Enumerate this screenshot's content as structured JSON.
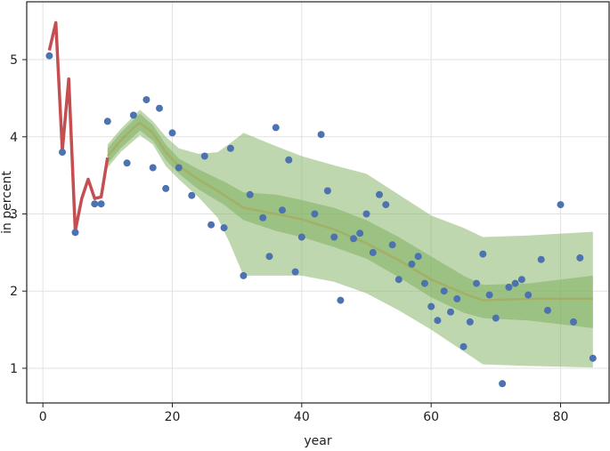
{
  "chart_data": {
    "type": "scatter",
    "xlabel": "year",
    "ylabel": "in percent",
    "xlim": [
      -2.5,
      87.5
    ],
    "ylim": [
      0.55,
      5.75
    ],
    "x_ticks": [
      0,
      20,
      40,
      60,
      80
    ],
    "y_ticks": [
      1,
      2,
      3,
      4,
      5
    ],
    "grid": true,
    "colors": {
      "points": "#4c72b0",
      "spot_line": "#c44e52",
      "band": "#7fb05f",
      "median_line": "#a9a354",
      "grid": "#e2e2e2",
      "axes": "#222222"
    },
    "points": [
      {
        "x": 1,
        "y": 5.05
      },
      {
        "x": 3,
        "y": 3.8
      },
      {
        "x": 5,
        "y": 2.76
      },
      {
        "x": 8,
        "y": 3.13
      },
      {
        "x": 9,
        "y": 3.13
      },
      {
        "x": 10,
        "y": 4.2
      },
      {
        "x": 13,
        "y": 3.66
      },
      {
        "x": 14,
        "y": 4.28
      },
      {
        "x": 16,
        "y": 4.48
      },
      {
        "x": 17,
        "y": 3.6
      },
      {
        "x": 18,
        "y": 4.37
      },
      {
        "x": 19,
        "y": 3.33
      },
      {
        "x": 20,
        "y": 4.05
      },
      {
        "x": 21,
        "y": 3.6
      },
      {
        "x": 23,
        "y": 3.24
      },
      {
        "x": 25,
        "y": 3.75
      },
      {
        "x": 26,
        "y": 2.86
      },
      {
        "x": 28,
        "y": 2.82
      },
      {
        "x": 29,
        "y": 3.85
      },
      {
        "x": 31,
        "y": 2.2
      },
      {
        "x": 32,
        "y": 3.25
      },
      {
        "x": 34,
        "y": 2.95
      },
      {
        "x": 35,
        "y": 2.45
      },
      {
        "x": 36,
        "y": 4.12
      },
      {
        "x": 37,
        "y": 3.05
      },
      {
        "x": 38,
        "y": 3.7
      },
      {
        "x": 39,
        "y": 2.25
      },
      {
        "x": 40,
        "y": 2.7
      },
      {
        "x": 42,
        "y": 3.0
      },
      {
        "x": 43,
        "y": 4.03
      },
      {
        "x": 44,
        "y": 3.3
      },
      {
        "x": 45,
        "y": 2.7
      },
      {
        "x": 46,
        "y": 1.88
      },
      {
        "x": 48,
        "y": 2.68
      },
      {
        "x": 49,
        "y": 2.75
      },
      {
        "x": 50,
        "y": 3.0
      },
      {
        "x": 51,
        "y": 2.5
      },
      {
        "x": 52,
        "y": 3.25
      },
      {
        "x": 53,
        "y": 3.12
      },
      {
        "x": 54,
        "y": 2.6
      },
      {
        "x": 55,
        "y": 2.15
      },
      {
        "x": 57,
        "y": 2.35
      },
      {
        "x": 58,
        "y": 2.45
      },
      {
        "x": 59,
        "y": 2.1
      },
      {
        "x": 60,
        "y": 1.8
      },
      {
        "x": 61,
        "y": 1.62
      },
      {
        "x": 62,
        "y": 2.0
      },
      {
        "x": 63,
        "y": 1.73
      },
      {
        "x": 64,
        "y": 1.9
      },
      {
        "x": 65,
        "y": 1.28
      },
      {
        "x": 66,
        "y": 1.6
      },
      {
        "x": 67,
        "y": 2.1
      },
      {
        "x": 68,
        "y": 2.48
      },
      {
        "x": 69,
        "y": 1.95
      },
      {
        "x": 70,
        "y": 1.65
      },
      {
        "x": 71,
        "y": 0.8
      },
      {
        "x": 72,
        "y": 2.05
      },
      {
        "x": 73,
        "y": 2.1
      },
      {
        "x": 74,
        "y": 2.15
      },
      {
        "x": 75,
        "y": 1.95
      },
      {
        "x": 77,
        "y": 2.41
      },
      {
        "x": 78,
        "y": 1.75
      },
      {
        "x": 80,
        "y": 3.12
      },
      {
        "x": 82,
        "y": 1.6
      },
      {
        "x": 83,
        "y": 2.43
      },
      {
        "x": 85,
        "y": 1.13
      }
    ],
    "spot_line": [
      {
        "x": 1,
        "y": 5.12
      },
      {
        "x": 2,
        "y": 5.48
      },
      {
        "x": 3,
        "y": 3.82
      },
      {
        "x": 4,
        "y": 4.75
      },
      {
        "x": 5,
        "y": 2.78
      },
      {
        "x": 6,
        "y": 3.2
      },
      {
        "x": 7,
        "y": 3.45
      },
      {
        "x": 8,
        "y": 3.2
      },
      {
        "x": 9,
        "y": 3.22
      },
      {
        "x": 10,
        "y": 3.73
      }
    ],
    "median_line": [
      {
        "x": 10,
        "y": 3.75
      },
      {
        "x": 12,
        "y": 3.95
      },
      {
        "x": 14,
        "y": 4.12
      },
      {
        "x": 15,
        "y": 4.18
      },
      {
        "x": 17,
        "y": 4.05
      },
      {
        "x": 19,
        "y": 3.8
      },
      {
        "x": 21,
        "y": 3.62
      },
      {
        "x": 24,
        "y": 3.45
      },
      {
        "x": 27,
        "y": 3.3
      },
      {
        "x": 31,
        "y": 3.08
      },
      {
        "x": 36,
        "y": 3.0
      },
      {
        "x": 40,
        "y": 2.93
      },
      {
        "x": 45,
        "y": 2.8
      },
      {
        "x": 50,
        "y": 2.62
      },
      {
        "x": 55,
        "y": 2.4
      },
      {
        "x": 60,
        "y": 2.15
      },
      {
        "x": 65,
        "y": 1.97
      },
      {
        "x": 68,
        "y": 1.88
      },
      {
        "x": 75,
        "y": 1.9
      },
      {
        "x": 85,
        "y": 1.9
      }
    ],
    "inner_band": {
      "x": [
        10,
        12,
        15,
        17,
        19,
        21,
        24,
        28,
        31,
        36,
        40,
        45,
        50,
        55,
        60,
        65,
        68,
        75,
        85
      ],
      "upper": [
        3.85,
        4.05,
        4.3,
        4.15,
        3.9,
        3.72,
        3.58,
        3.42,
        3.28,
        3.25,
        3.18,
        3.08,
        2.92,
        2.7,
        2.45,
        2.2,
        2.08,
        2.1,
        2.2
      ],
      "lower": [
        3.65,
        3.85,
        4.08,
        3.95,
        3.7,
        3.52,
        3.32,
        3.12,
        2.92,
        2.78,
        2.7,
        2.57,
        2.42,
        2.18,
        1.92,
        1.72,
        1.65,
        1.62,
        1.52
      ]
    },
    "outer_band": {
      "x": [
        10,
        12,
        15,
        17,
        19,
        21,
        24,
        27,
        29,
        31,
        36,
        40,
        45,
        50,
        55,
        60,
        65,
        68,
        75,
        85
      ],
      "upper": [
        3.9,
        4.1,
        4.35,
        4.2,
        4.0,
        3.85,
        3.78,
        3.8,
        3.92,
        4.05,
        3.88,
        3.75,
        3.63,
        3.52,
        3.25,
        2.98,
        2.82,
        2.7,
        2.72,
        2.77
      ],
      "lower": [
        3.6,
        3.8,
        4.02,
        3.9,
        3.62,
        3.45,
        3.22,
        2.95,
        2.6,
        2.2,
        2.2,
        2.2,
        2.12,
        1.97,
        1.75,
        1.5,
        1.22,
        1.05,
        1.03,
        1.01
      ]
    }
  }
}
